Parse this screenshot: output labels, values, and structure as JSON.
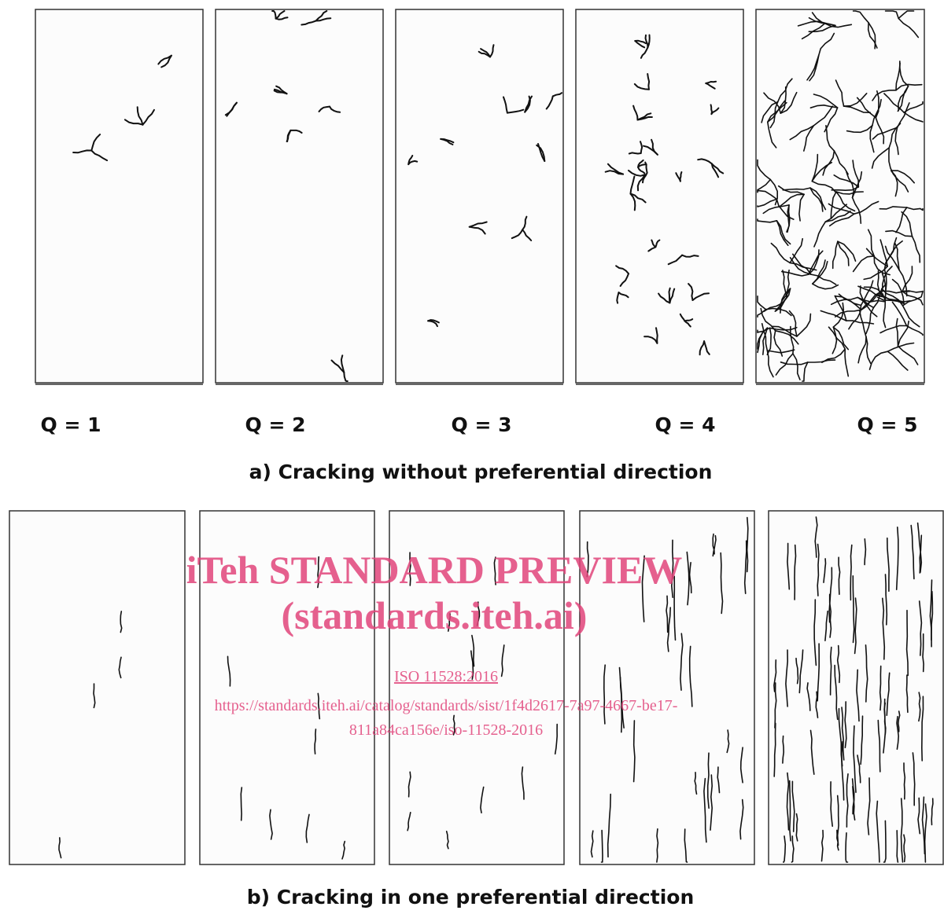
{
  "q_labels": [
    "Q = 1",
    "Q = 2",
    "Q = 3",
    "Q = 4",
    "Q = 5"
  ],
  "caption_a": "a) Cracking without preferential direction",
  "caption_b": "b) Cracking in one preferential direction",
  "watermark": {
    "title": "iTeh STANDARD PREVIEW",
    "site": "(standards.iteh.ai)",
    "standard": "ISO 11528:2016",
    "url_line_1": "https://standards.iteh.ai/catalog/standards/sist/1f4d2617-7a97-4667-be17-",
    "url_line_2": "811a84ca156e/iso-11528-2016"
  }
}
